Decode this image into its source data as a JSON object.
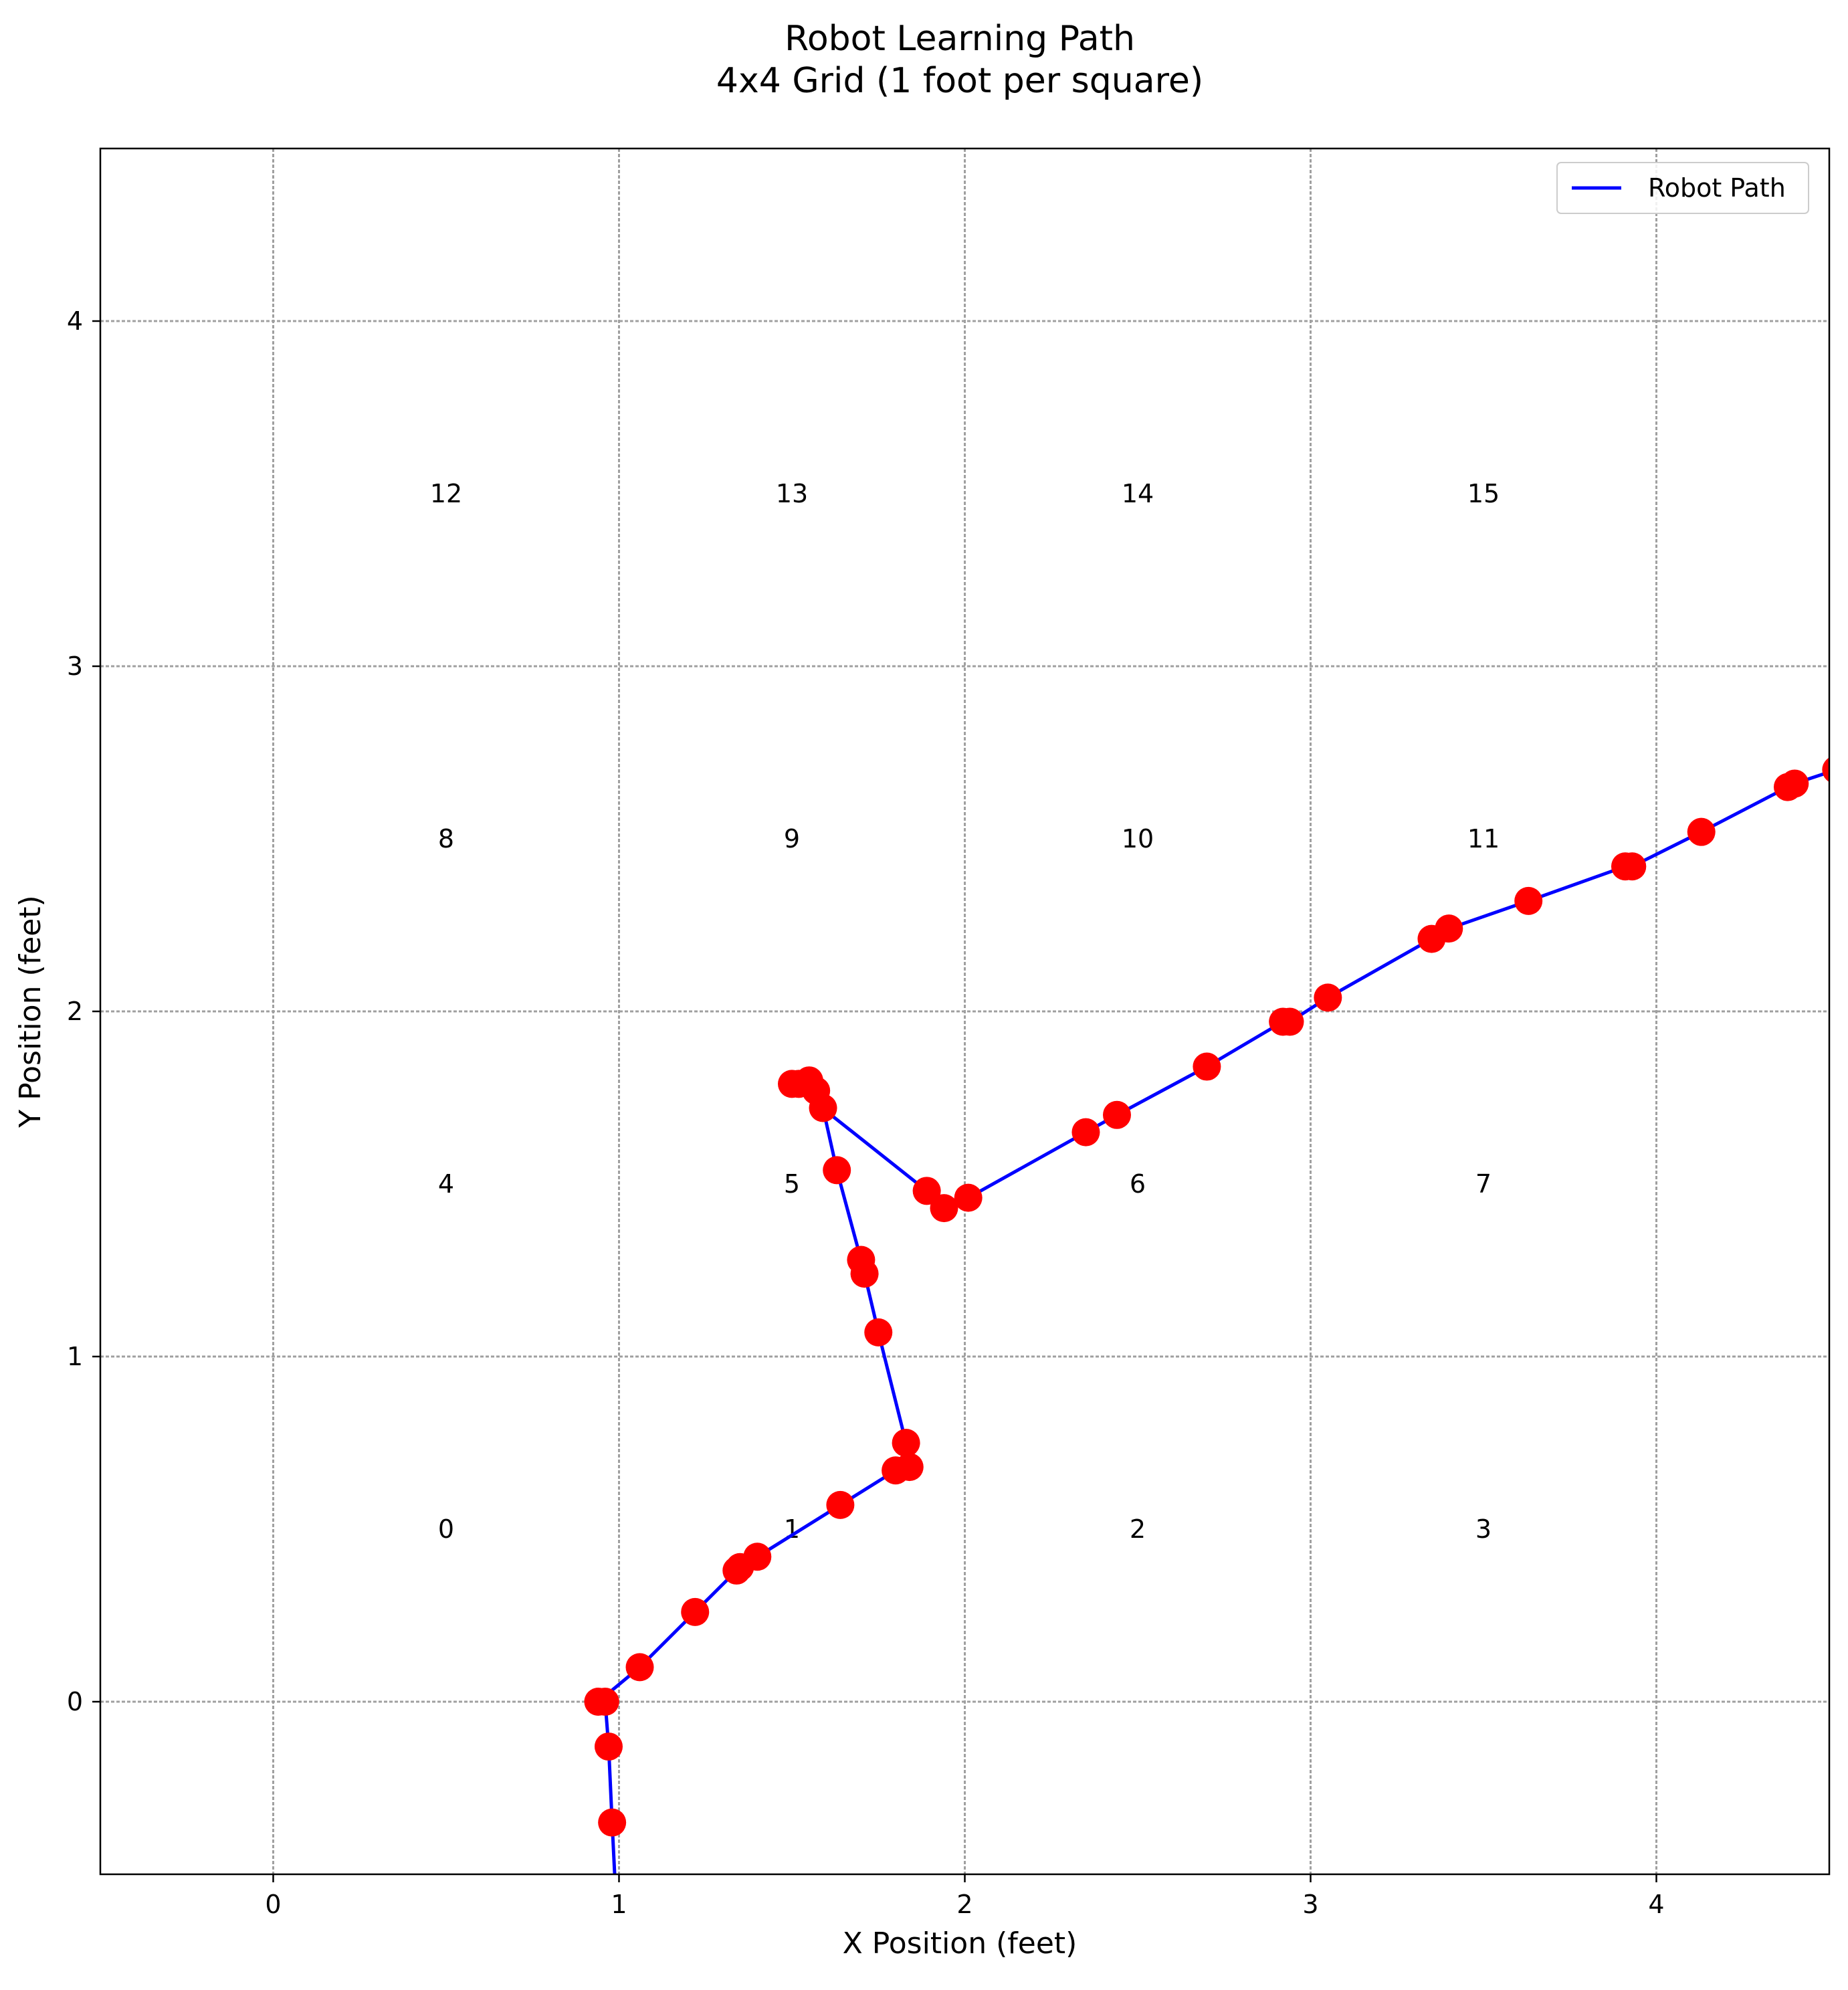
{
  "chart_data": {
    "type": "line",
    "title_line1": "Robot Learning Path",
    "title_line2": "4x4 Grid (1 foot per square)",
    "xlabel": "X Position (feet)",
    "ylabel": "Y Position (feet)",
    "xlim": [
      -0.5,
      4.5
    ],
    "ylim": [
      -0.5,
      4.5
    ],
    "x_ticks": [
      0,
      1,
      2,
      3,
      4
    ],
    "y_ticks": [
      0,
      1,
      2,
      3,
      4
    ],
    "x_tick_labels": [
      "0",
      "1",
      "2",
      "3",
      "4"
    ],
    "y_tick_labels": [
      "0",
      "1",
      "2",
      "3",
      "4"
    ],
    "grid": true,
    "legend": {
      "placement": "upper-right",
      "entries": [
        "Robot Path"
      ]
    },
    "colors": {
      "path": "#0000ff",
      "points": "#ff0000",
      "grid": "#a0a0a0"
    },
    "cell_labels": [
      {
        "label": "0",
        "x": 0.5,
        "y": 0.5
      },
      {
        "label": "1",
        "x": 1.5,
        "y": 0.5
      },
      {
        "label": "2",
        "x": 2.5,
        "y": 0.5
      },
      {
        "label": "3",
        "x": 3.5,
        "y": 0.5
      },
      {
        "label": "4",
        "x": 0.5,
        "y": 1.5
      },
      {
        "label": "5",
        "x": 1.5,
        "y": 1.5
      },
      {
        "label": "6",
        "x": 2.5,
        "y": 1.5
      },
      {
        "label": "7",
        "x": 3.5,
        "y": 1.5
      },
      {
        "label": "8",
        "x": 0.5,
        "y": 2.5
      },
      {
        "label": "9",
        "x": 1.5,
        "y": 2.5
      },
      {
        "label": "10",
        "x": 2.5,
        "y": 2.5
      },
      {
        "label": "11",
        "x": 3.5,
        "y": 2.5
      },
      {
        "label": "12",
        "x": 0.5,
        "y": 3.5
      },
      {
        "label": "13",
        "x": 1.5,
        "y": 3.5
      },
      {
        "label": "14",
        "x": 2.5,
        "y": 3.5
      },
      {
        "label": "15",
        "x": 3.5,
        "y": 3.5
      }
    ],
    "series": [
      {
        "name": "Robot Path",
        "points": [
          [
            0.99,
            -0.55
          ],
          [
            0.98,
            -0.35
          ],
          [
            0.97,
            -0.13
          ],
          [
            0.96,
            0.0
          ],
          [
            0.94,
            0.0
          ],
          [
            1.06,
            0.1
          ],
          [
            1.22,
            0.26
          ],
          [
            1.34,
            0.38
          ],
          [
            1.35,
            0.39
          ],
          [
            1.4,
            0.42
          ],
          [
            1.64,
            0.57
          ],
          [
            1.8,
            0.67
          ],
          [
            1.84,
            0.68
          ],
          [
            1.83,
            0.75
          ],
          [
            1.75,
            1.07
          ],
          [
            1.71,
            1.24
          ],
          [
            1.7,
            1.28
          ],
          [
            1.63,
            1.54
          ],
          [
            1.59,
            1.72
          ],
          [
            1.57,
            1.77
          ],
          [
            1.55,
            1.8
          ],
          [
            1.52,
            1.79
          ],
          [
            1.5,
            1.79
          ],
          [
            1.89,
            1.48
          ],
          [
            1.94,
            1.43
          ],
          [
            2.01,
            1.46
          ],
          [
            2.35,
            1.65
          ],
          [
            2.44,
            1.7
          ],
          [
            2.7,
            1.84
          ],
          [
            2.92,
            1.97
          ],
          [
            2.94,
            1.97
          ],
          [
            3.05,
            2.04
          ],
          [
            3.35,
            2.21
          ],
          [
            3.4,
            2.24
          ],
          [
            3.63,
            2.32
          ],
          [
            3.91,
            2.42
          ],
          [
            3.93,
            2.42
          ],
          [
            4.13,
            2.52
          ],
          [
            4.38,
            2.65
          ],
          [
            4.4,
            2.66
          ],
          [
            4.52,
            2.7
          ]
        ]
      }
    ]
  }
}
